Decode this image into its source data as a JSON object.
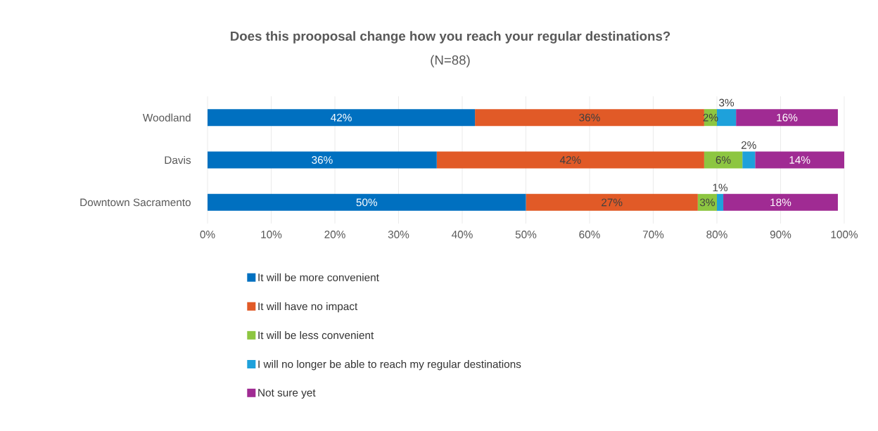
{
  "chart_data": {
    "type": "bar",
    "orientation": "horizontal",
    "stacked": true,
    "title": "Does this prooposal change how you reach your regular destinations?",
    "subtitle": "(N=88)",
    "categories": [
      "Woodland",
      "Davis",
      "Downtown Sacramento"
    ],
    "series": [
      {
        "name": "It will be more convenient",
        "color": "#0070c0",
        "values": [
          42,
          36,
          50
        ]
      },
      {
        "name": "It will have no impact",
        "color": "#e15a27",
        "values": [
          36,
          42,
          27
        ]
      },
      {
        "name": "It will be less convenient",
        "color": "#8dc641",
        "values": [
          2,
          6,
          3
        ]
      },
      {
        "name": "I will no longer be able to reach my regular destinations",
        "color": "#1ea1db",
        "values": [
          3,
          2,
          1
        ]
      },
      {
        "name": "Not sure yet",
        "color": "#a02b93",
        "values": [
          16,
          14,
          18
        ]
      }
    ],
    "value_labels": [
      [
        "42%",
        "36%",
        "50%"
      ],
      [
        "36%",
        "42%",
        "27%"
      ],
      [
        "2%",
        "6%",
        "3%"
      ],
      [
        "3%",
        "2%",
        "1%"
      ],
      [
        "16%",
        "14%",
        "18%"
      ]
    ],
    "xlim": [
      0,
      100
    ],
    "xticks": [
      {
        "value": 0,
        "label": "0%"
      },
      {
        "value": 10,
        "label": "10%"
      },
      {
        "value": 20,
        "label": "20%"
      },
      {
        "value": 30,
        "label": "30%"
      },
      {
        "value": 40,
        "label": "40%"
      },
      {
        "value": 50,
        "label": "50%"
      },
      {
        "value": 60,
        "label": "60%"
      },
      {
        "value": 70,
        "label": "70%"
      },
      {
        "value": 80,
        "label": "80%"
      },
      {
        "value": 90,
        "label": "90%"
      },
      {
        "value": 100,
        "label": "100%"
      }
    ],
    "grid": "x",
    "legend": "bottom"
  }
}
